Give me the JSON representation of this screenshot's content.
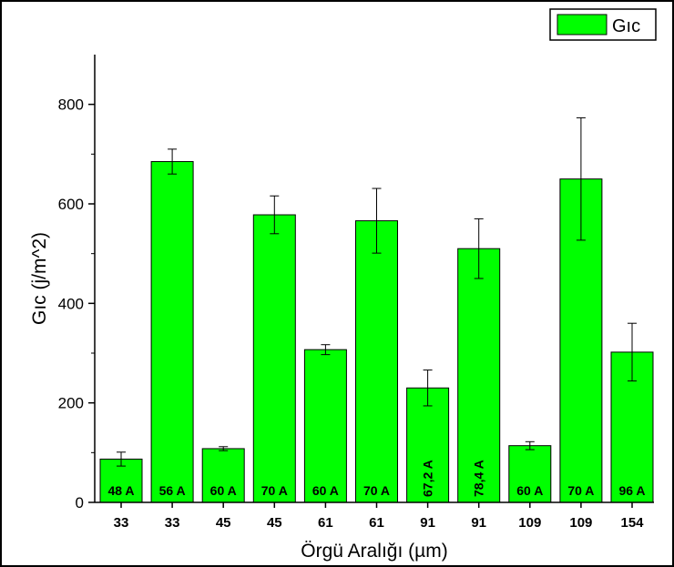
{
  "chart_data": {
    "type": "bar",
    "categories": [
      "33",
      "33",
      "45",
      "45",
      "61",
      "61",
      "91",
      "91",
      "109",
      "109",
      "154"
    ],
    "series": [
      {
        "name": "Gıc",
        "values": [
          87,
          685,
          108,
          578,
          307,
          566,
          230,
          510,
          114,
          650,
          302
        ],
        "errors": [
          14,
          25,
          4,
          38,
          10,
          65,
          36,
          60,
          8,
          123,
          58
        ],
        "bar_labels": [
          "48 A",
          "56 A",
          "60 A",
          "70 A",
          "60 A",
          "70 A",
          "67,2 A",
          "78,4 A",
          "60 A",
          "70 A",
          "96 A"
        ],
        "color": "#00ff00"
      }
    ],
    "xlabel": "Örgü Aralığı (µm)",
    "ylabel": "Gıc (j/m^2)",
    "ylim": [
      0,
      900
    ],
    "yticks": [
      0,
      200,
      400,
      600,
      800
    ],
    "grid": false,
    "legend_position": "top-right"
  }
}
